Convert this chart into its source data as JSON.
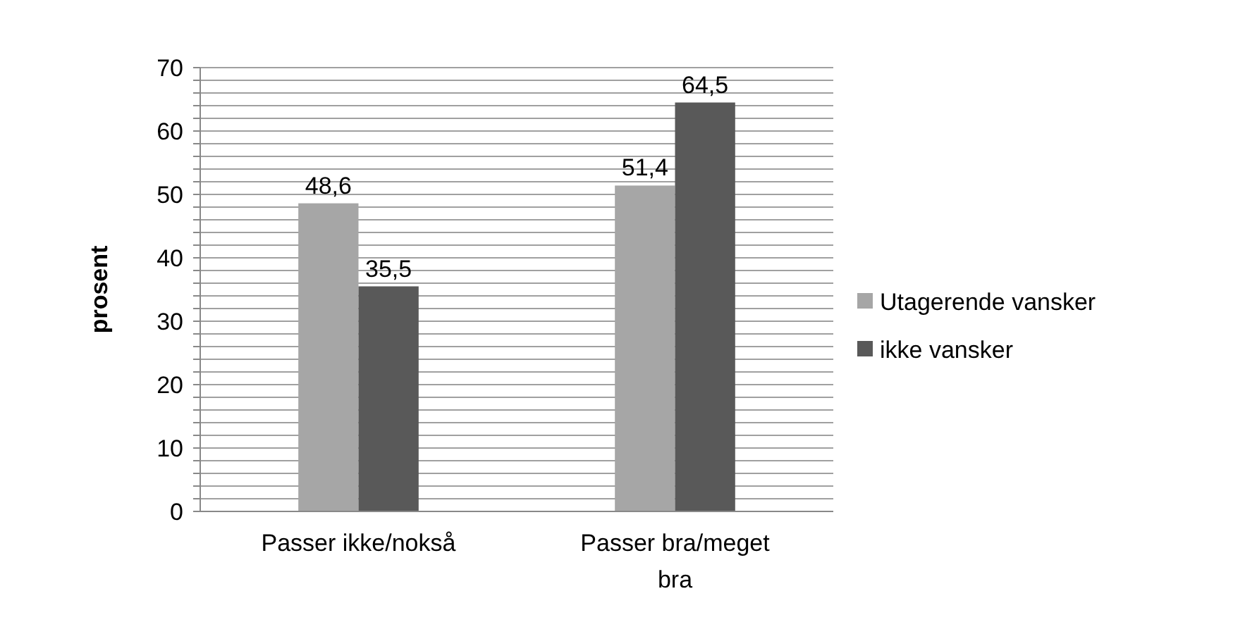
{
  "chart_data": {
    "type": "bar",
    "ylabel": "prosent",
    "categories": [
      "Passer ikke/nokså",
      "Passer bra/meget bra"
    ],
    "series": [
      {
        "name": "Utagerende vansker",
        "color": "#a6a6a6",
        "values": [
          48.6,
          51.4
        ],
        "value_labels": [
          "48,6",
          "51,4"
        ]
      },
      {
        "name": "ikke vansker",
        "color": "#595959",
        "values": [
          35.5,
          64.5
        ],
        "value_labels": [
          "35,5",
          "64,5"
        ]
      }
    ],
    "ylim": [
      0,
      70
    ],
    "yticks": [
      0,
      {
        "value": 2,
        "label": null
      },
      {
        "value": 4,
        "label": null
      },
      {
        "value": 6,
        "label": null
      },
      {
        "value": 8,
        "label": null
      },
      10,
      {
        "value": 12,
        "label": null
      },
      {
        "value": 14,
        "label": null
      },
      {
        "value": 16,
        "label": null
      },
      {
        "value": 18,
        "label": null
      },
      20,
      {
        "value": 22,
        "label": null
      },
      {
        "value": 24,
        "label": null
      },
      {
        "value": 26,
        "label": null
      },
      {
        "value": 28,
        "label": null
      },
      30,
      {
        "value": 32,
        "label": null
      },
      {
        "value": 34,
        "label": null
      },
      {
        "value": 36,
        "label": null
      },
      {
        "value": 38,
        "label": null
      },
      40,
      {
        "value": 42,
        "label": null
      },
      {
        "value": 44,
        "label": null
      },
      {
        "value": 46,
        "label": null
      },
      {
        "value": 48,
        "label": null
      },
      50,
      {
        "value": 52,
        "label": null
      },
      {
        "value": 54,
        "label": null
      },
      {
        "value": 56,
        "label": null
      },
      {
        "value": 58,
        "label": null
      },
      60,
      {
        "value": 62,
        "label": null
      },
      {
        "value": 64,
        "label": null
      },
      {
        "value": 66,
        "label": null
      },
      {
        "value": 68,
        "label": null
      },
      70
    ],
    "grid": true,
    "legend": "right"
  }
}
